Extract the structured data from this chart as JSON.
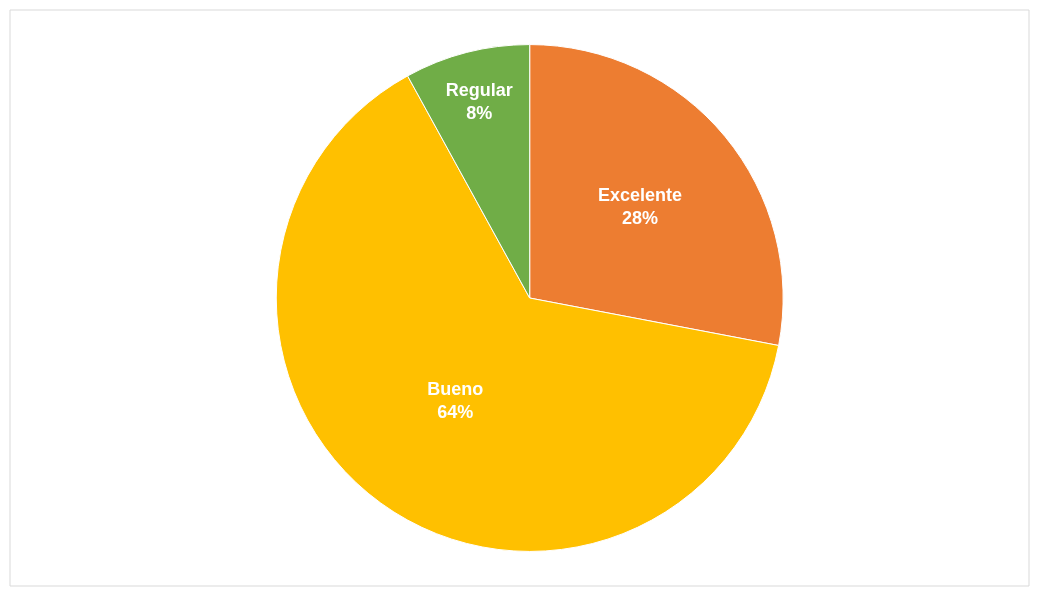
{
  "chart_data": {
    "type": "pie",
    "categories": [
      "Excelente",
      "Bueno",
      "Regular"
    ],
    "values": [
      28,
      64,
      8
    ],
    "value_labels": [
      "28%",
      "64%",
      "8%"
    ],
    "colors": [
      "#ed7d31",
      "#ffc000",
      "#70ad47"
    ],
    "legend": false
  }
}
